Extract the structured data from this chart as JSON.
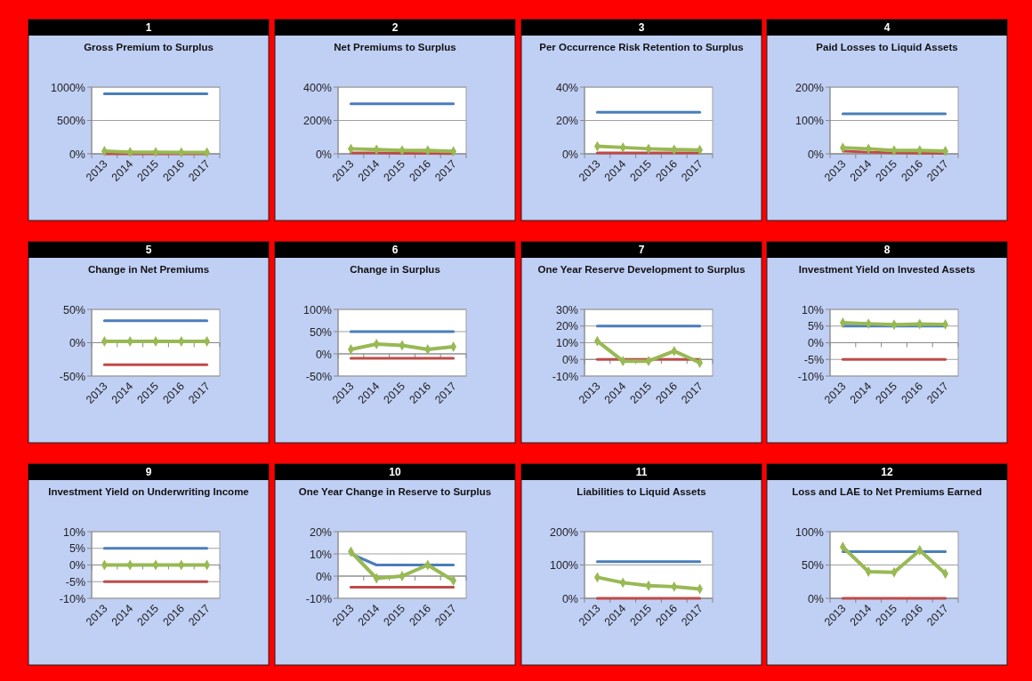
{
  "chart_data": [
    {
      "type": "line",
      "title": "Gross Premium to Surplus",
      "annotations": [
        "1"
      ],
      "categories": [
        "2013",
        "2014",
        "2015",
        "2016",
        "2017"
      ],
      "ylim": [
        0,
        1000
      ],
      "yticks": [
        {
          "value": 0,
          "label": "0%"
        },
        {
          "value": 500,
          "label": "500%"
        },
        {
          "value": 1000,
          "label": "1000%"
        }
      ],
      "grid": "y",
      "series": [
        {
          "color": "#4a7ebb",
          "marker": "none",
          "values": [
            900,
            900,
            900,
            900,
            900
          ]
        },
        {
          "color": "#be4b48",
          "marker": "none",
          "values": [
            0,
            0,
            0,
            0,
            0
          ]
        },
        {
          "color": "#98b954",
          "marker": "diamond",
          "values": [
            40,
            25,
            25,
            20,
            20
          ]
        }
      ]
    },
    {
      "type": "line",
      "title": "Net Premiums to Surplus",
      "annotations": [
        "2"
      ],
      "categories": [
        "2013",
        "2014",
        "2015",
        "2016",
        "2017"
      ],
      "ylim": [
        0,
        400
      ],
      "yticks": [
        {
          "value": 0,
          "label": "0%"
        },
        {
          "value": 200,
          "label": "200%"
        },
        {
          "value": 400,
          "label": "400%"
        }
      ],
      "grid": "y",
      "series": [
        {
          "color": "#4a7ebb",
          "marker": "none",
          "values": [
            300,
            300,
            300,
            300,
            300
          ]
        },
        {
          "color": "#be4b48",
          "marker": "none",
          "values": [
            5,
            5,
            3,
            2,
            2
          ]
        },
        {
          "color": "#98b954",
          "marker": "diamond",
          "values": [
            30,
            25,
            20,
            20,
            15
          ]
        }
      ]
    },
    {
      "type": "line",
      "title": "Per Occurrence Risk Retention to Surplus",
      "annotations": [
        "3"
      ],
      "categories": [
        "2013",
        "2014",
        "2015",
        "2016",
        "2017"
      ],
      "ylim": [
        0,
        40
      ],
      "yticks": [
        {
          "value": 0,
          "label": "0%"
        },
        {
          "value": 20,
          "label": "20%"
        },
        {
          "value": 40,
          "label": "40%"
        }
      ],
      "grid": "y",
      "series": [
        {
          "color": "#4a7ebb",
          "marker": "none",
          "values": [
            25,
            25,
            25,
            25,
            25
          ]
        },
        {
          "color": "#be4b48",
          "marker": "none",
          "values": [
            0.5,
            0.5,
            0.5,
            0.5,
            0.5
          ]
        },
        {
          "color": "#98b954",
          "marker": "diamond",
          "values": [
            4.5,
            3.8,
            3,
            2.5,
            2.3
          ]
        }
      ]
    },
    {
      "type": "line",
      "title": "Paid Losses to Liquid Assets",
      "annotations": [
        "4"
      ],
      "categories": [
        "2013",
        "2014",
        "2015",
        "2016",
        "2017"
      ],
      "ylim": [
        0,
        200
      ],
      "yticks": [
        {
          "value": 0,
          "label": "0%"
        },
        {
          "value": 100,
          "label": "100%"
        },
        {
          "value": 200,
          "label": "200%"
        }
      ],
      "grid": "y",
      "series": [
        {
          "color": "#4a7ebb",
          "marker": "none",
          "values": [
            120,
            120,
            120,
            120,
            120
          ]
        },
        {
          "color": "#be4b48",
          "marker": "none",
          "values": [
            8,
            5,
            3,
            2,
            1
          ]
        },
        {
          "color": "#98b954",
          "marker": "diamond",
          "values": [
            18,
            15,
            10,
            10,
            8
          ]
        }
      ]
    },
    {
      "type": "line",
      "title": "Change in Net Premiums",
      "annotations": [
        "5"
      ],
      "categories": [
        "2013",
        "2014",
        "2015",
        "2016",
        "2017"
      ],
      "ylim": [
        -50,
        50
      ],
      "yticks": [
        {
          "value": -50,
          "label": "-50%"
        },
        {
          "value": 0,
          "label": "0%"
        },
        {
          "value": 50,
          "label": "50%"
        }
      ],
      "grid": "y",
      "series": [
        {
          "color": "#4a7ebb",
          "marker": "none",
          "values": [
            33,
            33,
            33,
            33,
            33
          ]
        },
        {
          "color": "#be4b48",
          "marker": "none",
          "values": [
            -33,
            -33,
            -33,
            -33,
            -33
          ]
        },
        {
          "color": "#98b954",
          "marker": "diamond",
          "values": [
            2,
            2,
            2,
            2,
            2
          ]
        }
      ]
    },
    {
      "type": "line",
      "title": "Change in Surplus",
      "annotations": [
        "6"
      ],
      "categories": [
        "2013",
        "2014",
        "2015",
        "2016",
        "2017"
      ],
      "ylim": [
        -50,
        100
      ],
      "yticks": [
        {
          "value": -50,
          "label": "-50%"
        },
        {
          "value": 0,
          "label": "0%"
        },
        {
          "value": 50,
          "label": "50%"
        },
        {
          "value": 100,
          "label": "100%"
        }
      ],
      "grid": "y",
      "series": [
        {
          "color": "#4a7ebb",
          "marker": "none",
          "values": [
            50,
            50,
            50,
            50,
            50
          ]
        },
        {
          "color": "#be4b48",
          "marker": "none",
          "values": [
            -10,
            -10,
            -10,
            -10,
            -10
          ]
        },
        {
          "color": "#98b954",
          "marker": "diamond",
          "values": [
            10,
            22,
            19,
            10,
            16
          ]
        }
      ]
    },
    {
      "type": "line",
      "title": "One Year Reserve Development to Surplus",
      "annotations": [
        "7"
      ],
      "categories": [
        "2013",
        "2014",
        "2015",
        "2016",
        "2017"
      ],
      "ylim": [
        -10,
        30
      ],
      "yticks": [
        {
          "value": -10,
          "label": "-10%"
        },
        {
          "value": 0,
          "label": "0%"
        },
        {
          "value": 10,
          "label": "10%"
        },
        {
          "value": 20,
          "label": "20%"
        },
        {
          "value": 30,
          "label": "30%"
        }
      ],
      "grid": "y",
      "series": [
        {
          "color": "#4a7ebb",
          "marker": "none",
          "values": [
            20,
            20,
            20,
            20,
            20
          ]
        },
        {
          "color": "#be4b48",
          "marker": "none",
          "values": [
            0,
            0,
            0,
            0,
            0
          ]
        },
        {
          "color": "#98b954",
          "marker": "diamond",
          "values": [
            11,
            -1,
            -1,
            5,
            -2
          ]
        }
      ]
    },
    {
      "type": "line",
      "title": "Investment Yield on Invested Assets",
      "annotations": [
        "8"
      ],
      "categories": [
        "2013",
        "2014",
        "2015",
        "2016",
        "2017"
      ],
      "ylim": [
        -10,
        10
      ],
      "yticks": [
        {
          "value": -10,
          "label": "-10%"
        },
        {
          "value": -5,
          "label": "-5%"
        },
        {
          "value": 0,
          "label": "0%"
        },
        {
          "value": 5,
          "label": "5%"
        },
        {
          "value": 10,
          "label": "10%"
        }
      ],
      "grid": "y",
      "series": [
        {
          "color": "#4a7ebb",
          "marker": "none",
          "values": [
            5,
            5,
            5,
            5,
            5
          ]
        },
        {
          "color": "#be4b48",
          "marker": "none",
          "values": [
            -5,
            -5,
            -5,
            -5,
            -5
          ]
        },
        {
          "color": "#98b954",
          "marker": "diamond",
          "values": [
            6,
            5.7,
            5.4,
            5.6,
            5.5
          ]
        }
      ]
    },
    {
      "type": "line",
      "title": "Investment Yield on Underwriting Income",
      "annotations": [
        "9"
      ],
      "categories": [
        "2013",
        "2014",
        "2015",
        "2016",
        "2017"
      ],
      "ylim": [
        -10,
        10
      ],
      "yticks": [
        {
          "value": -10,
          "label": "-10%"
        },
        {
          "value": -5,
          "label": "-5%"
        },
        {
          "value": 0,
          "label": "0%"
        },
        {
          "value": 5,
          "label": "5%"
        },
        {
          "value": 10,
          "label": "10%"
        }
      ],
      "grid": "y",
      "series": [
        {
          "color": "#4a7ebb",
          "marker": "none",
          "values": [
            5,
            5,
            5,
            5,
            5
          ]
        },
        {
          "color": "#be4b48",
          "marker": "none",
          "values": [
            -5,
            -5,
            -5,
            -5,
            -5
          ]
        },
        {
          "color": "#98b954",
          "marker": "diamond",
          "values": [
            0,
            0,
            0,
            0,
            0
          ]
        }
      ]
    },
    {
      "type": "line",
      "title": "One Year Change in Reserve to Surplus",
      "annotations": [
        "10"
      ],
      "categories": [
        "2013",
        "2014",
        "2015",
        "2016",
        "2017"
      ],
      "ylim": [
        -10,
        20
      ],
      "yticks": [
        {
          "value": -10,
          "label": "-10%"
        },
        {
          "value": 0,
          "label": "0%"
        },
        {
          "value": 10,
          "label": "10%"
        },
        {
          "value": 20,
          "label": "20%"
        }
      ],
      "grid": "y",
      "series": [
        {
          "color": "#4a7ebb",
          "marker": "none",
          "values": [
            10,
            5,
            5,
            5,
            5
          ]
        },
        {
          "color": "#be4b48",
          "marker": "none",
          "values": [
            -5,
            -5,
            -5,
            -5,
            -5
          ]
        },
        {
          "color": "#98b954",
          "marker": "diamond",
          "values": [
            11,
            -1,
            0,
            5,
            -2
          ]
        }
      ]
    },
    {
      "type": "line",
      "title": "Liabilities to Liquid Assets",
      "annotations": [
        "11"
      ],
      "categories": [
        "2013",
        "2014",
        "2015",
        "2016",
        "2017"
      ],
      "ylim": [
        0,
        200
      ],
      "yticks": [
        {
          "value": 0,
          "label": "0%"
        },
        {
          "value": 100,
          "label": "100%"
        },
        {
          "value": 200,
          "label": "200%"
        }
      ],
      "grid": "y",
      "series": [
        {
          "color": "#4a7ebb",
          "marker": "none",
          "values": [
            110,
            110,
            110,
            110,
            110
          ]
        },
        {
          "color": "#be4b48",
          "marker": "none",
          "values": [
            0,
            0,
            0,
            0,
            0
          ]
        },
        {
          "color": "#98b954",
          "marker": "diamond",
          "values": [
            63,
            47,
            38,
            35,
            28
          ]
        }
      ]
    },
    {
      "type": "line",
      "title": "Loss and LAE to Net Premiums Earned",
      "annotations": [
        "12"
      ],
      "categories": [
        "2013",
        "2014",
        "2015",
        "2016",
        "2017"
      ],
      "ylim": [
        0,
        100
      ],
      "yticks": [
        {
          "value": 0,
          "label": "0%"
        },
        {
          "value": 50,
          "label": "50%"
        },
        {
          "value": 100,
          "label": "100%"
        }
      ],
      "grid": "y",
      "series": [
        {
          "color": "#4a7ebb",
          "marker": "none",
          "values": [
            70,
            70,
            70,
            70,
            70
          ]
        },
        {
          "color": "#be4b48",
          "marker": "none",
          "values": [
            0,
            0,
            0,
            0,
            0
          ]
        },
        {
          "color": "#98b954",
          "marker": "diamond",
          "values": [
            77,
            40,
            39,
            72,
            37
          ]
        }
      ]
    }
  ]
}
